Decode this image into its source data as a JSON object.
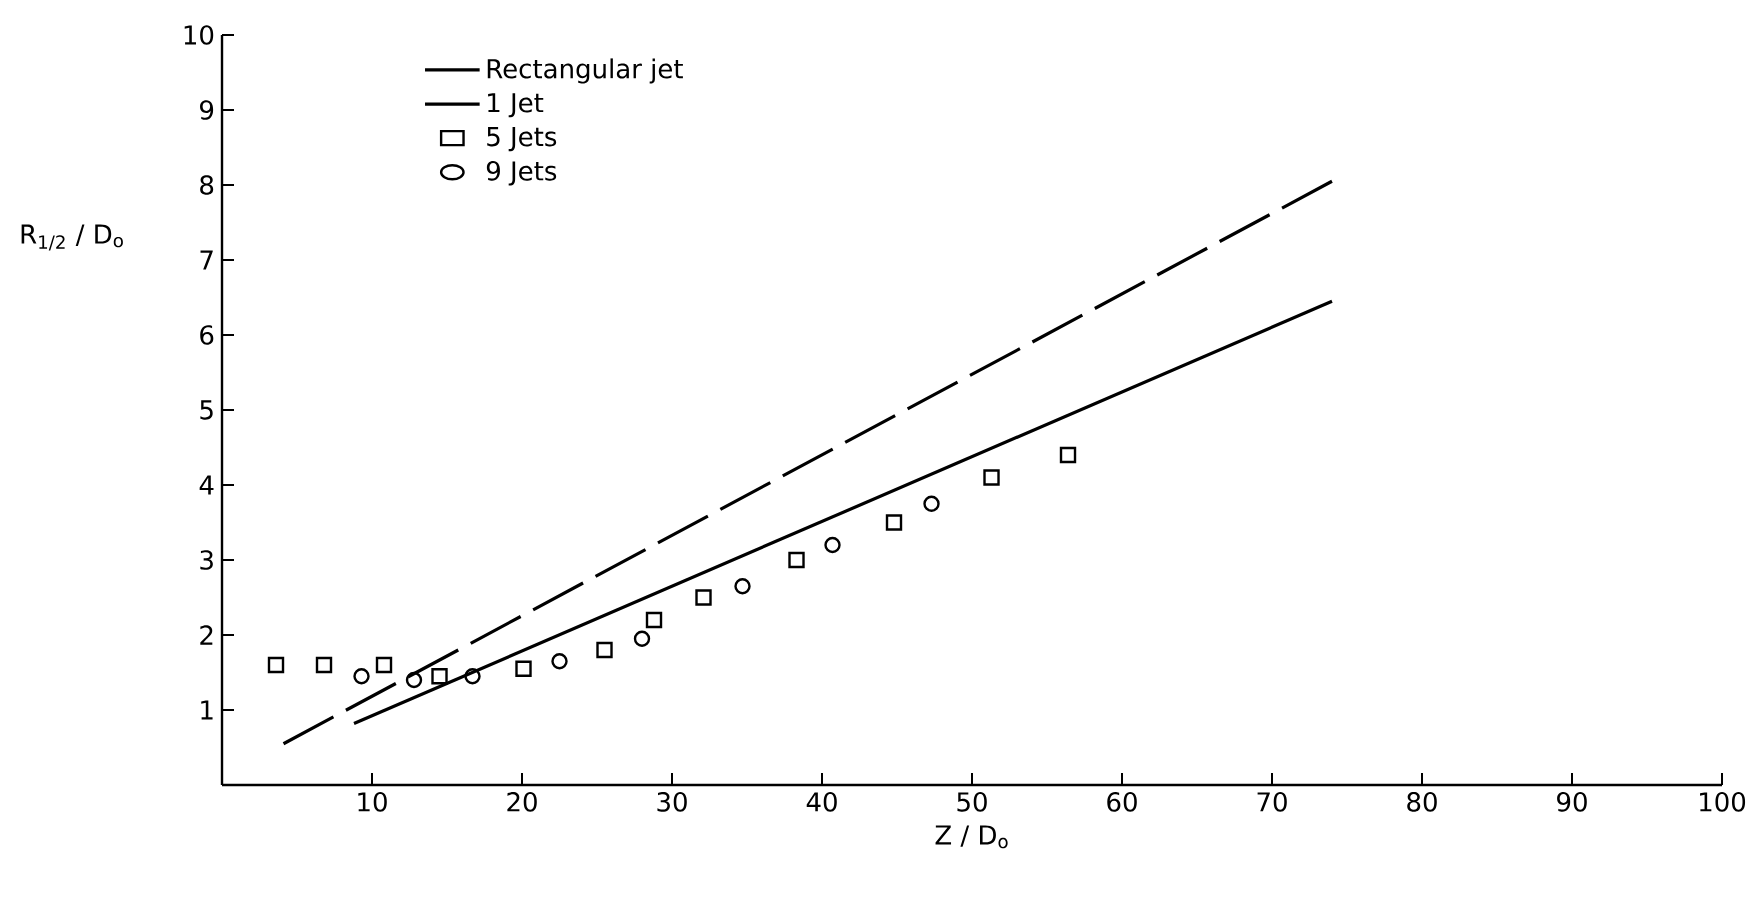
{
  "chart_data": {
    "type": "line",
    "xlabel": "Z / D$_{o}$",
    "ylabel": "R$_{1/2}$ / D$_{o}$",
    "xlim": [
      0,
      100
    ],
    "ylim": [
      0,
      10
    ],
    "xticks": [
      10,
      20,
      30,
      40,
      50,
      60,
      70,
      80,
      90,
      100
    ],
    "yticks": [
      1,
      2,
      3,
      4,
      5,
      6,
      7,
      8,
      9,
      10
    ],
    "legend": "top left",
    "grid": false,
    "series": [
      {
        "name": "Rectangular  jet",
        "line_style": "dashed",
        "color": "#000000",
        "x": [
          4.1,
          74
        ],
        "values": [
          0.55,
          8.05
        ]
      },
      {
        "name": "1  Jet",
        "line_style": "solid",
        "color": "#000000",
        "x": [
          8.8,
          74
        ],
        "values": [
          0.82,
          6.45
        ]
      },
      {
        "name": "5  Jets",
        "type": "scatter",
        "marker": "square",
        "color": "#000000",
        "x": [
          3.6,
          6.8,
          10.8,
          14.5,
          20.1,
          25.5,
          28.8,
          32.1,
          38.3,
          44.8,
          51.3,
          56.4
        ],
        "values": [
          1.6,
          1.6,
          1.6,
          1.45,
          1.55,
          1.8,
          2.2,
          2.5,
          3.0,
          3.5,
          4.1,
          4.4
        ]
      },
      {
        "name": "9  Jets",
        "type": "scatter",
        "marker": "circle",
        "color": "#000000",
        "x": [
          9.3,
          12.8,
          16.7,
          22.5,
          28.0,
          34.7,
          40.7,
          47.3
        ],
        "values": [
          1.45,
          1.4,
          1.45,
          1.65,
          1.95,
          2.65,
          3.2,
          3.75
        ]
      }
    ]
  }
}
